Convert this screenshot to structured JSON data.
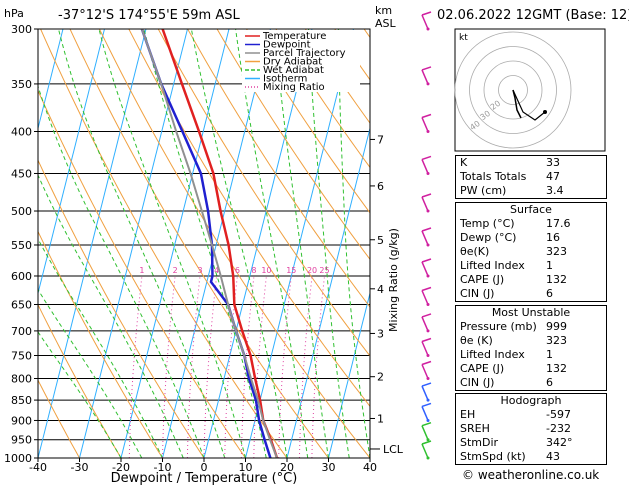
{
  "header": {
    "hpa_unit": "hPa",
    "location": "-37°12'S  174°55'E  59m  ASL",
    "km_label": "km",
    "asl_label": "ASL",
    "datetime": "02.06.2022  12GMT  (Base: 12)"
  },
  "chart_data": {
    "type": "line",
    "title": "",
    "xlabel": "Dewpoint / Temperature (°C)",
    "ylabel": "hPa",
    "x_ticks": [
      -40,
      -30,
      -20,
      -10,
      0,
      10,
      20,
      30,
      40
    ],
    "y_ticks": [
      300,
      350,
      400,
      450,
      500,
      550,
      600,
      650,
      700,
      750,
      800,
      850,
      900,
      950,
      1000
    ],
    "xlim": [
      -40,
      40
    ],
    "ylim": [
      1000,
      300
    ],
    "y_scale": "log",
    "km_axis": {
      "ticks": [
        "7",
        "6",
        "5",
        "4",
        "3",
        "2",
        "1"
      ],
      "pressures": [
        409,
        466,
        542,
        622,
        705,
        796,
        895
      ],
      "lcl_label": "LCL",
      "lcl_pressure": 975
    },
    "mixing_ratio_labels": [
      "1",
      "2",
      "3",
      "4",
      "6",
      "8",
      "10",
      "15",
      "20",
      "25"
    ],
    "mixing_ratio_axis_label": "Mixing Ratio (g/kg)",
    "legend": {
      "placement": "top-left",
      "entries": [
        {
          "name": "Temperature",
          "color": "#e02020"
        },
        {
          "name": "Dewpoint",
          "color": "#2020d0"
        },
        {
          "name": "Parcel Trajectory",
          "color": "#909090"
        },
        {
          "name": "Dry Adiabat",
          "color": "#f0a040"
        },
        {
          "name": "Wet Adiabat",
          "color": "#30c030"
        },
        {
          "name": "Isotherm",
          "color": "#30b0ff"
        },
        {
          "name": "Mixing Ratio",
          "color": "#e040a0"
        }
      ]
    },
    "series": [
      {
        "name": "Temperature",
        "points": [
          [
            1000,
            17.6
          ],
          [
            950,
            15
          ],
          [
            900,
            12
          ],
          [
            850,
            10
          ],
          [
            800,
            7.5
          ],
          [
            750,
            5
          ],
          [
            700,
            1.5
          ],
          [
            650,
            -2
          ],
          [
            600,
            -4
          ],
          [
            550,
            -7
          ],
          [
            500,
            -11
          ],
          [
            450,
            -15
          ],
          [
            400,
            -21
          ],
          [
            350,
            -28
          ],
          [
            300,
            -36
          ]
        ]
      },
      {
        "name": "Dewpoint",
        "points": [
          [
            1000,
            16
          ],
          [
            950,
            13.5
          ],
          [
            900,
            11
          ],
          [
            850,
            9
          ],
          [
            800,
            6
          ],
          [
            750,
            3.5
          ],
          [
            700,
            0
          ],
          [
            650,
            -3.5
          ],
          [
            610,
            -9
          ],
          [
            600,
            -9
          ],
          [
            550,
            -11
          ],
          [
            500,
            -14
          ],
          [
            450,
            -18
          ],
          [
            400,
            -25
          ],
          [
            350,
            -33
          ],
          [
            300,
            -41
          ]
        ]
      },
      {
        "name": "Parcel Trajectory",
        "points": [
          [
            1000,
            17.6
          ],
          [
            950,
            14.8
          ],
          [
            900,
            12
          ],
          [
            850,
            9.5
          ],
          [
            800,
            6.5
          ],
          [
            750,
            3.5
          ],
          [
            700,
            0
          ],
          [
            650,
            -3.5
          ],
          [
            600,
            -7
          ],
          [
            550,
            -11
          ],
          [
            500,
            -15.5
          ],
          [
            450,
            -20.5
          ],
          [
            400,
            -26.5
          ],
          [
            350,
            -33
          ],
          [
            300,
            -41
          ]
        ]
      }
    ]
  },
  "hodograph": {
    "unit_label": "kt",
    "ring_labels": [
      "20",
      "30",
      "40"
    ]
  },
  "indices": [
    {
      "label": "K",
      "value": "33"
    },
    {
      "label": "Totals Totals",
      "value": "47"
    },
    {
      "label": "PW (cm)",
      "value": "3.4"
    }
  ],
  "surface": {
    "title": "Surface",
    "rows": [
      {
        "label": "Temp (°C)",
        "value": "17.6"
      },
      {
        "label": "Dewp (°C)",
        "value": "16"
      },
      {
        "label": "θe(K)",
        "value": "323"
      },
      {
        "label": "Lifted Index",
        "value": "1"
      },
      {
        "label": "CAPE (J)",
        "value": "132"
      },
      {
        "label": "CIN (J)",
        "value": "6"
      }
    ]
  },
  "most_unstable": {
    "title": "Most Unstable",
    "rows": [
      {
        "label": "Pressure (mb)",
        "value": "999"
      },
      {
        "label": "θe (K)",
        "value": "323"
      },
      {
        "label": "Lifted Index",
        "value": "1"
      },
      {
        "label": "CAPE (J)",
        "value": "132"
      },
      {
        "label": "CIN (J)",
        "value": "6"
      }
    ]
  },
  "hodograph_table": {
    "title": "Hodograph",
    "rows": [
      {
        "label": "EH",
        "value": "-597"
      },
      {
        "label": "SREH",
        "value": "-232"
      },
      {
        "label": "StmDir",
        "value": "342°"
      },
      {
        "label": "StmSpd (kt)",
        "value": "43"
      }
    ]
  },
  "credit": "© weatheronline.co.uk"
}
